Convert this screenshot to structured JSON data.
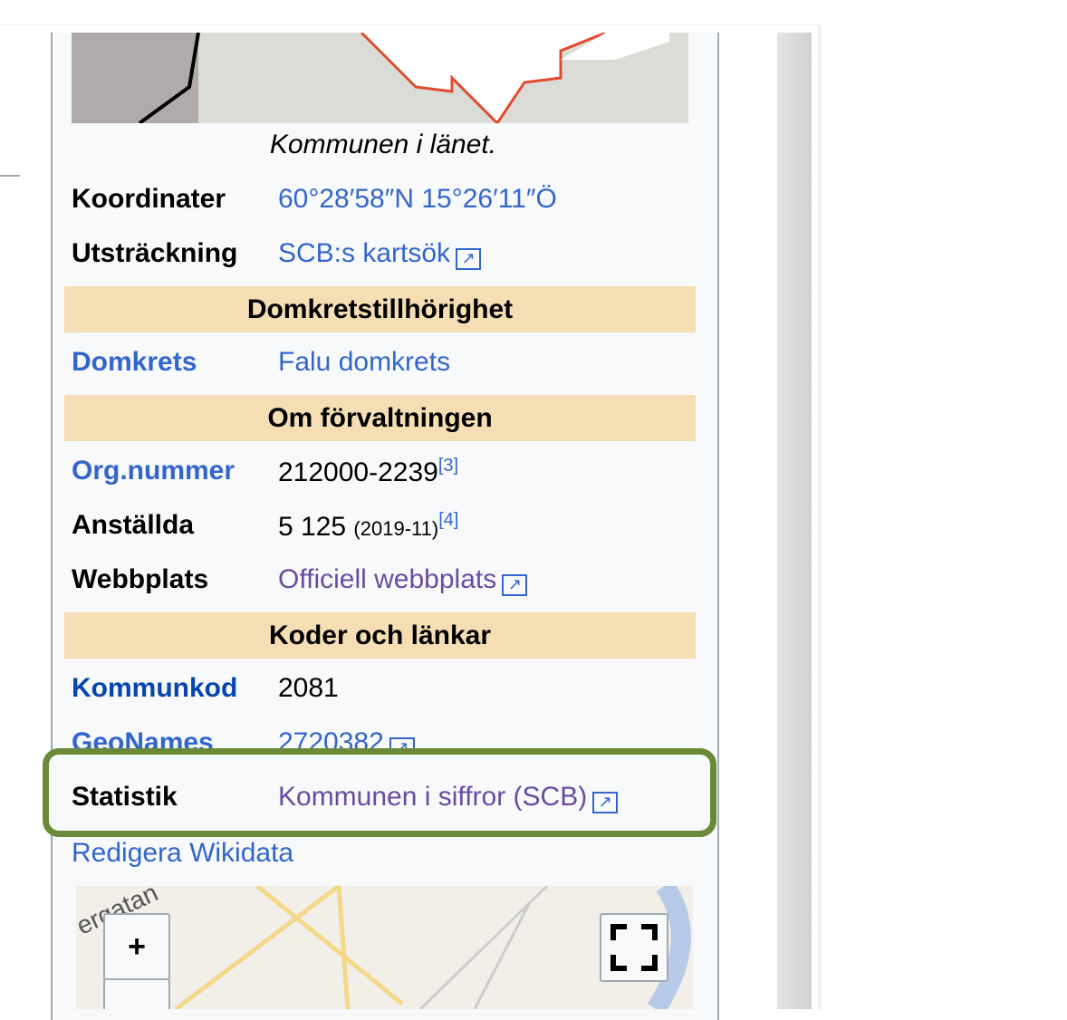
{
  "map_caption": "Kommunen i länet.",
  "rows": [
    {
      "label": "Koordinater",
      "value": "60°28′58″N 15°26′11″Ö"
    },
    {
      "label": "Utsträckning",
      "value": "SCB:s kartsök"
    },
    {
      "header": "Domkretstillhörighet"
    },
    {
      "label": "Domkrets",
      "value": "Falu domkrets"
    },
    {
      "header": "Om förvaltningen"
    },
    {
      "label": "Org.nummer",
      "value": "212000-2239",
      "ref": "[3]"
    },
    {
      "label": "Anställda",
      "value": "5 125",
      "note": "(2019-11)",
      "ref": "[4]"
    },
    {
      "label": "Webbplats",
      "value": "Officiell webbplats"
    },
    {
      "header": "Koder och länkar"
    },
    {
      "label": "Kommunkod",
      "value": "2081"
    },
    {
      "label": "GeoNames",
      "value": "2720382"
    },
    {
      "label": "Statistik",
      "value": "Kommunen i siffror (SCB)"
    }
  ],
  "edit_link": "Redigera Wikidata",
  "map": {
    "street_label": "ergatan",
    "zoom_in": "+"
  },
  "highlight_color": "#6a8a38"
}
